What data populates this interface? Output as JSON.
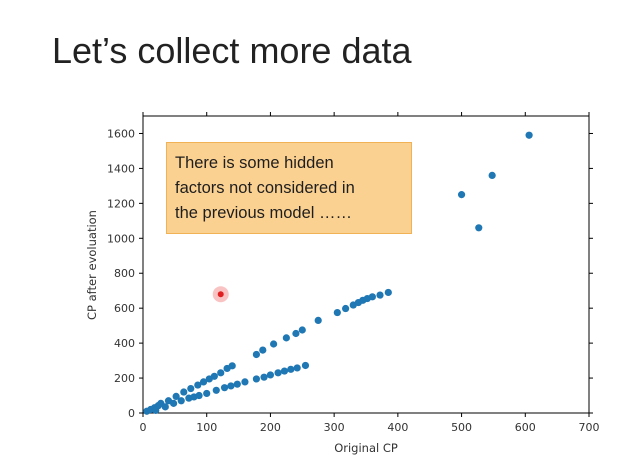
{
  "slide": {
    "title": "Let’s collect more data"
  },
  "annotation": {
    "lines": [
      "There is some hidden",
      "factors not considered in",
      "the previous model ……"
    ],
    "color": "#fbd192"
  },
  "chart_data": {
    "type": "scatter",
    "title": "",
    "xlabel": "Original CP",
    "ylabel": "CP after evoluation",
    "xlim": [
      0,
      700
    ],
    "ylim": [
      0,
      1700
    ],
    "xticks": [
      0,
      100,
      200,
      300,
      400,
      500,
      600,
      700
    ],
    "yticks": [
      0,
      200,
      400,
      600,
      800,
      1000,
      1200,
      1400,
      1600
    ],
    "grid": false,
    "point_color": "#1f77b4",
    "highlight_color": "#e02020",
    "series": [
      {
        "points": [
          [
            6,
            10
          ],
          [
            12,
            20
          ],
          [
            18,
            30
          ],
          [
            24,
            42
          ],
          [
            28,
            55
          ],
          [
            40,
            70
          ],
          [
            52,
            95
          ],
          [
            64,
            120
          ],
          [
            75,
            140
          ],
          [
            86,
            160
          ],
          [
            95,
            178
          ],
          [
            104,
            195
          ],
          [
            112,
            210
          ],
          [
            122,
            230
          ],
          [
            132,
            255
          ],
          [
            140,
            270
          ],
          [
            178,
            335
          ],
          [
            188,
            360
          ],
          [
            205,
            395
          ],
          [
            225,
            430
          ],
          [
            240,
            455
          ],
          [
            250,
            475
          ],
          [
            275,
            530
          ],
          [
            305,
            575
          ],
          [
            318,
            598
          ],
          [
            330,
            618
          ],
          [
            338,
            632
          ],
          [
            345,
            645
          ],
          [
            352,
            655
          ],
          [
            360,
            665
          ],
          [
            372,
            675
          ],
          [
            385,
            690
          ],
          [
            20,
            15
          ],
          [
            35,
            35
          ],
          [
            48,
            55
          ],
          [
            60,
            70
          ],
          [
            72,
            85
          ],
          [
            80,
            92
          ],
          [
            88,
            100
          ],
          [
            100,
            112
          ],
          [
            115,
            130
          ],
          [
            128,
            145
          ],
          [
            138,
            155
          ],
          [
            148,
            165
          ],
          [
            160,
            178
          ],
          [
            178,
            195
          ],
          [
            190,
            205
          ],
          [
            200,
            218
          ],
          [
            212,
            230
          ],
          [
            222,
            240
          ],
          [
            232,
            250
          ],
          [
            242,
            258
          ],
          [
            255,
            272
          ],
          [
            500,
            1250
          ],
          [
            527,
            1060
          ],
          [
            548,
            1360
          ],
          [
            606,
            1590
          ]
        ]
      }
    ],
    "highlight_point": [
      122,
      680
    ]
  }
}
